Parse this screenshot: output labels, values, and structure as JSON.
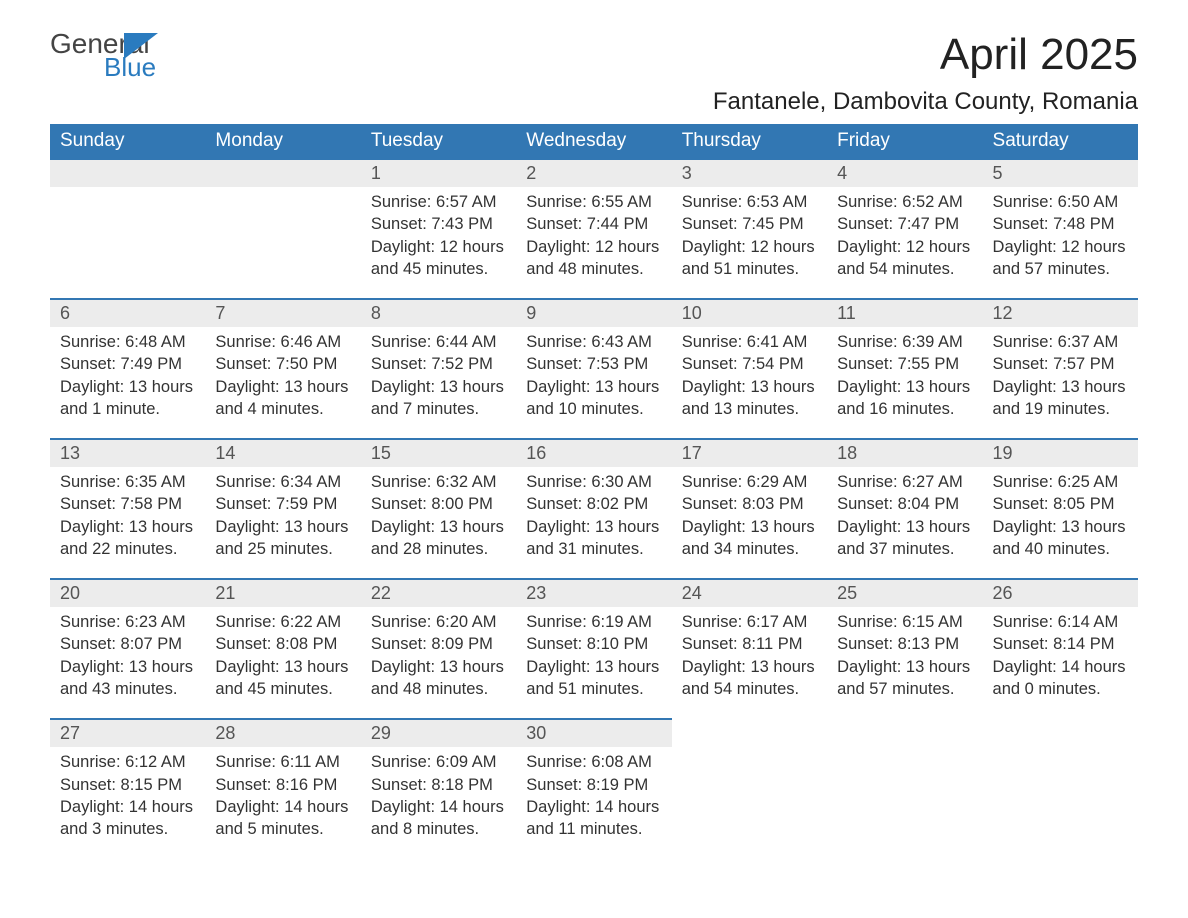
{
  "logo": {
    "general": "General",
    "blue": "Blue"
  },
  "title": "April 2025",
  "location": "Fantanele, Dambovita County, Romania",
  "colors": {
    "header_bg": "#3277b3",
    "header_text": "#ffffff",
    "daynum_bg": "#ececec",
    "row_divider": "#3277b3",
    "body_text": "#333333",
    "logo_blue": "#2a7bbf",
    "page_bg": "#ffffff"
  },
  "typography": {
    "title_fontsize": 44,
    "location_fontsize": 24,
    "weekday_fontsize": 19,
    "daynum_fontsize": 18,
    "body_fontsize": 16.5,
    "font_family": "Arial"
  },
  "layout": {
    "columns": 7,
    "rows": 5,
    "first_day_column_index": 2
  },
  "weekdays": [
    "Sunday",
    "Monday",
    "Tuesday",
    "Wednesday",
    "Thursday",
    "Friday",
    "Saturday"
  ],
  "weeks": [
    [
      null,
      null,
      {
        "n": "1",
        "sr": "Sunrise: 6:57 AM",
        "ss": "Sunset: 7:43 PM",
        "d1": "Daylight: 12 hours",
        "d2": "and 45 minutes."
      },
      {
        "n": "2",
        "sr": "Sunrise: 6:55 AM",
        "ss": "Sunset: 7:44 PM",
        "d1": "Daylight: 12 hours",
        "d2": "and 48 minutes."
      },
      {
        "n": "3",
        "sr": "Sunrise: 6:53 AM",
        "ss": "Sunset: 7:45 PM",
        "d1": "Daylight: 12 hours",
        "d2": "and 51 minutes."
      },
      {
        "n": "4",
        "sr": "Sunrise: 6:52 AM",
        "ss": "Sunset: 7:47 PM",
        "d1": "Daylight: 12 hours",
        "d2": "and 54 minutes."
      },
      {
        "n": "5",
        "sr": "Sunrise: 6:50 AM",
        "ss": "Sunset: 7:48 PM",
        "d1": "Daylight: 12 hours",
        "d2": "and 57 minutes."
      }
    ],
    [
      {
        "n": "6",
        "sr": "Sunrise: 6:48 AM",
        "ss": "Sunset: 7:49 PM",
        "d1": "Daylight: 13 hours",
        "d2": "and 1 minute."
      },
      {
        "n": "7",
        "sr": "Sunrise: 6:46 AM",
        "ss": "Sunset: 7:50 PM",
        "d1": "Daylight: 13 hours",
        "d2": "and 4 minutes."
      },
      {
        "n": "8",
        "sr": "Sunrise: 6:44 AM",
        "ss": "Sunset: 7:52 PM",
        "d1": "Daylight: 13 hours",
        "d2": "and 7 minutes."
      },
      {
        "n": "9",
        "sr": "Sunrise: 6:43 AM",
        "ss": "Sunset: 7:53 PM",
        "d1": "Daylight: 13 hours",
        "d2": "and 10 minutes."
      },
      {
        "n": "10",
        "sr": "Sunrise: 6:41 AM",
        "ss": "Sunset: 7:54 PM",
        "d1": "Daylight: 13 hours",
        "d2": "and 13 minutes."
      },
      {
        "n": "11",
        "sr": "Sunrise: 6:39 AM",
        "ss": "Sunset: 7:55 PM",
        "d1": "Daylight: 13 hours",
        "d2": "and 16 minutes."
      },
      {
        "n": "12",
        "sr": "Sunrise: 6:37 AM",
        "ss": "Sunset: 7:57 PM",
        "d1": "Daylight: 13 hours",
        "d2": "and 19 minutes."
      }
    ],
    [
      {
        "n": "13",
        "sr": "Sunrise: 6:35 AM",
        "ss": "Sunset: 7:58 PM",
        "d1": "Daylight: 13 hours",
        "d2": "and 22 minutes."
      },
      {
        "n": "14",
        "sr": "Sunrise: 6:34 AM",
        "ss": "Sunset: 7:59 PM",
        "d1": "Daylight: 13 hours",
        "d2": "and 25 minutes."
      },
      {
        "n": "15",
        "sr": "Sunrise: 6:32 AM",
        "ss": "Sunset: 8:00 PM",
        "d1": "Daylight: 13 hours",
        "d2": "and 28 minutes."
      },
      {
        "n": "16",
        "sr": "Sunrise: 6:30 AM",
        "ss": "Sunset: 8:02 PM",
        "d1": "Daylight: 13 hours",
        "d2": "and 31 minutes."
      },
      {
        "n": "17",
        "sr": "Sunrise: 6:29 AM",
        "ss": "Sunset: 8:03 PM",
        "d1": "Daylight: 13 hours",
        "d2": "and 34 minutes."
      },
      {
        "n": "18",
        "sr": "Sunrise: 6:27 AM",
        "ss": "Sunset: 8:04 PM",
        "d1": "Daylight: 13 hours",
        "d2": "and 37 minutes."
      },
      {
        "n": "19",
        "sr": "Sunrise: 6:25 AM",
        "ss": "Sunset: 8:05 PM",
        "d1": "Daylight: 13 hours",
        "d2": "and 40 minutes."
      }
    ],
    [
      {
        "n": "20",
        "sr": "Sunrise: 6:23 AM",
        "ss": "Sunset: 8:07 PM",
        "d1": "Daylight: 13 hours",
        "d2": "and 43 minutes."
      },
      {
        "n": "21",
        "sr": "Sunrise: 6:22 AM",
        "ss": "Sunset: 8:08 PM",
        "d1": "Daylight: 13 hours",
        "d2": "and 45 minutes."
      },
      {
        "n": "22",
        "sr": "Sunrise: 6:20 AM",
        "ss": "Sunset: 8:09 PM",
        "d1": "Daylight: 13 hours",
        "d2": "and 48 minutes."
      },
      {
        "n": "23",
        "sr": "Sunrise: 6:19 AM",
        "ss": "Sunset: 8:10 PM",
        "d1": "Daylight: 13 hours",
        "d2": "and 51 minutes."
      },
      {
        "n": "24",
        "sr": "Sunrise: 6:17 AM",
        "ss": "Sunset: 8:11 PM",
        "d1": "Daylight: 13 hours",
        "d2": "and 54 minutes."
      },
      {
        "n": "25",
        "sr": "Sunrise: 6:15 AM",
        "ss": "Sunset: 8:13 PM",
        "d1": "Daylight: 13 hours",
        "d2": "and 57 minutes."
      },
      {
        "n": "26",
        "sr": "Sunrise: 6:14 AM",
        "ss": "Sunset: 8:14 PM",
        "d1": "Daylight: 14 hours",
        "d2": "and 0 minutes."
      }
    ],
    [
      {
        "n": "27",
        "sr": "Sunrise: 6:12 AM",
        "ss": "Sunset: 8:15 PM",
        "d1": "Daylight: 14 hours",
        "d2": "and 3 minutes."
      },
      {
        "n": "28",
        "sr": "Sunrise: 6:11 AM",
        "ss": "Sunset: 8:16 PM",
        "d1": "Daylight: 14 hours",
        "d2": "and 5 minutes."
      },
      {
        "n": "29",
        "sr": "Sunrise: 6:09 AM",
        "ss": "Sunset: 8:18 PM",
        "d1": "Daylight: 14 hours",
        "d2": "and 8 minutes."
      },
      {
        "n": "30",
        "sr": "Sunrise: 6:08 AM",
        "ss": "Sunset: 8:19 PM",
        "d1": "Daylight: 14 hours",
        "d2": "and 11 minutes."
      },
      null,
      null,
      null
    ]
  ]
}
